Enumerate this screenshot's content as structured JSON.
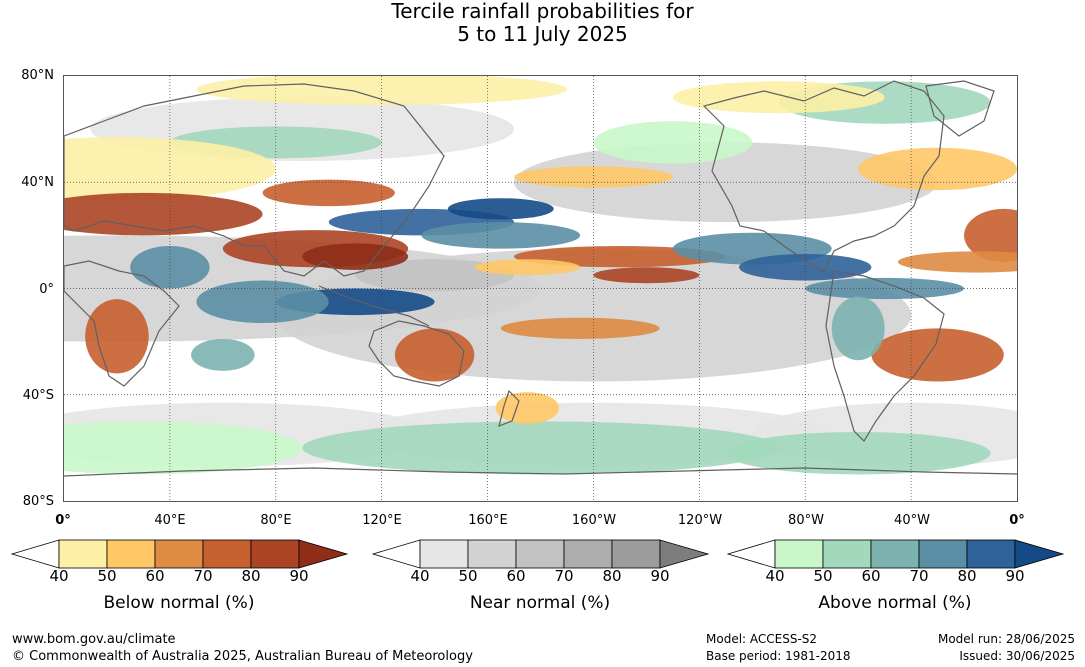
{
  "title": {
    "line1": "Tercile rainfall probabilities for",
    "line2": "5 to 11 July 2025"
  },
  "map": {
    "lat_labels": [
      "80°N",
      "40°N",
      "0°",
      "40°S",
      "80°S"
    ],
    "lon_labels": [
      "0°",
      "40°E",
      "80°E",
      "120°E",
      "160°E",
      "160°W",
      "120°W",
      "80°W",
      "40°W",
      "0°"
    ],
    "palette": {
      "below": [
        "#fdf0a6",
        "#fec866",
        "#de8b43",
        "#c6602f",
        "#ab4424",
        "#8e2d18"
      ],
      "near": [
        "#e6e6e6",
        "#d3d3d3",
        "#c2c2c2",
        "#adadad",
        "#9c9c9c",
        "#7d7d7d"
      ],
      "above": [
        "#c9f7c9",
        "#a2d8bc",
        "#7cb3af",
        "#5b8fa5",
        "#2f6299",
        "#154a88"
      ],
      "coastline": "#606060",
      "ocean_background": "#ffffff"
    }
  },
  "legends": [
    {
      "id": "below",
      "title": "Below normal (%)",
      "ticks": [
        "40",
        "50",
        "60",
        "70",
        "80",
        "90"
      ]
    },
    {
      "id": "near",
      "title": "Near normal (%)",
      "ticks": [
        "40",
        "50",
        "60",
        "70",
        "80",
        "90"
      ]
    },
    {
      "id": "above",
      "title": "Above normal (%)",
      "ticks": [
        "40",
        "50",
        "60",
        "70",
        "80",
        "90"
      ]
    }
  ],
  "footer": {
    "url": "www.bom.gov.au/climate",
    "copyright": "© Commonwealth of Australia 2025, Australian Bureau of Meteorology",
    "model": "Model: ACCESS-S2",
    "base_period": "Base period: 1981-2018",
    "model_run": "Model run: 28/06/2025",
    "issued": "Issued: 30/06/2025"
  }
}
